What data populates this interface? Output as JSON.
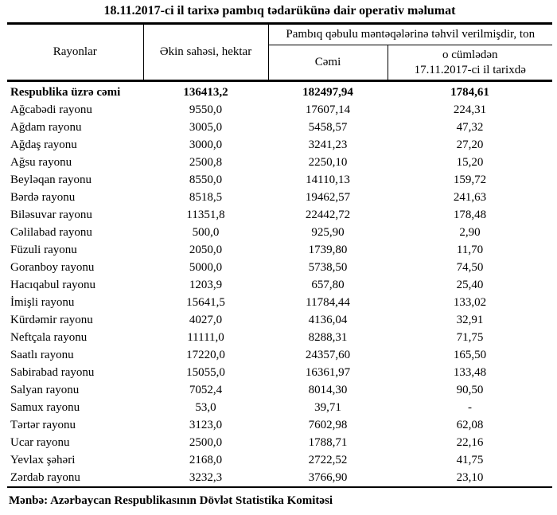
{
  "title": "18.11.2017-ci il tarixə pambıq tədarükünə dair operativ məlumat",
  "table": {
    "headers": {
      "regions": "Rayonlar",
      "sown_area": "Əkin sahəsi, hektar",
      "delivered_group": "Pambıq qəbulu məntəqələrinə təhvil verilmişdir, ton",
      "total": "Cəmi",
      "including_line1": "o cümlədən",
      "including_line2": "17.11.2017-ci il tarixdə"
    },
    "total_row": {
      "name": "Respublika üzrə cəmi",
      "sown_area": "136413,2",
      "delivered_total": "182497,94",
      "delivered_on_date": "1784,61"
    },
    "rows": [
      [
        "Ağcabədi rayonu",
        "9550,0",
        "17607,14",
        "224,31"
      ],
      [
        "Ağdam rayonu",
        "3005,0",
        "5458,57",
        "47,32"
      ],
      [
        "Ağdaş rayonu",
        "3000,0",
        "3241,23",
        "27,20"
      ],
      [
        "Ağsu rayonu",
        "2500,8",
        "2250,10",
        "15,20"
      ],
      [
        "Beyləqan rayonu",
        "8550,0",
        "14110,13",
        "159,72"
      ],
      [
        "Bərdə rayonu",
        "8518,5",
        "19462,57",
        "241,63"
      ],
      [
        "Biləsuvar rayonu",
        "11351,8",
        "22442,72",
        "178,48"
      ],
      [
        "Cəlilabad rayonu",
        "500,0",
        "925,90",
        "2,90"
      ],
      [
        "Füzuli rayonu",
        "2050,0",
        "1739,80",
        "11,70"
      ],
      [
        "Goranboy rayonu",
        "5000,0",
        "5738,50",
        "74,50"
      ],
      [
        "Hacıqabul rayonu",
        "1203,9",
        "657,80",
        "25,40"
      ],
      [
        "İmişli rayonu",
        "15641,5",
        "11784,44",
        "133,02"
      ],
      [
        "Kürdəmir rayonu",
        "4027,0",
        "4136,04",
        "32,91"
      ],
      [
        "Neftçala rayonu",
        "11111,0",
        "8288,31",
        "71,75"
      ],
      [
        "Saatlı rayonu",
        "17220,0",
        "24357,60",
        "165,50"
      ],
      [
        "Sabirabad rayonu",
        "15055,0",
        "16361,97",
        "133,48"
      ],
      [
        "Salyan rayonu",
        "7052,4",
        "8014,30",
        "90,50"
      ],
      [
        "Samux rayonu",
        "53,0",
        "39,71",
        "-"
      ],
      [
        "Tərtər rayonu",
        "3123,0",
        "7602,98",
        "62,08"
      ],
      [
        "Ucar rayonu",
        "2500,0",
        "1788,71",
        "22,16"
      ],
      [
        "Yevlax şəhəri",
        "2168,0",
        "2722,52",
        "41,75"
      ],
      [
        "Zərdab rayonu",
        "3232,3",
        "3766,90",
        "23,10"
      ]
    ]
  },
  "source": "Mənbə: Azərbaycan Respublikasının Dövlət Statistika Komitəsi"
}
